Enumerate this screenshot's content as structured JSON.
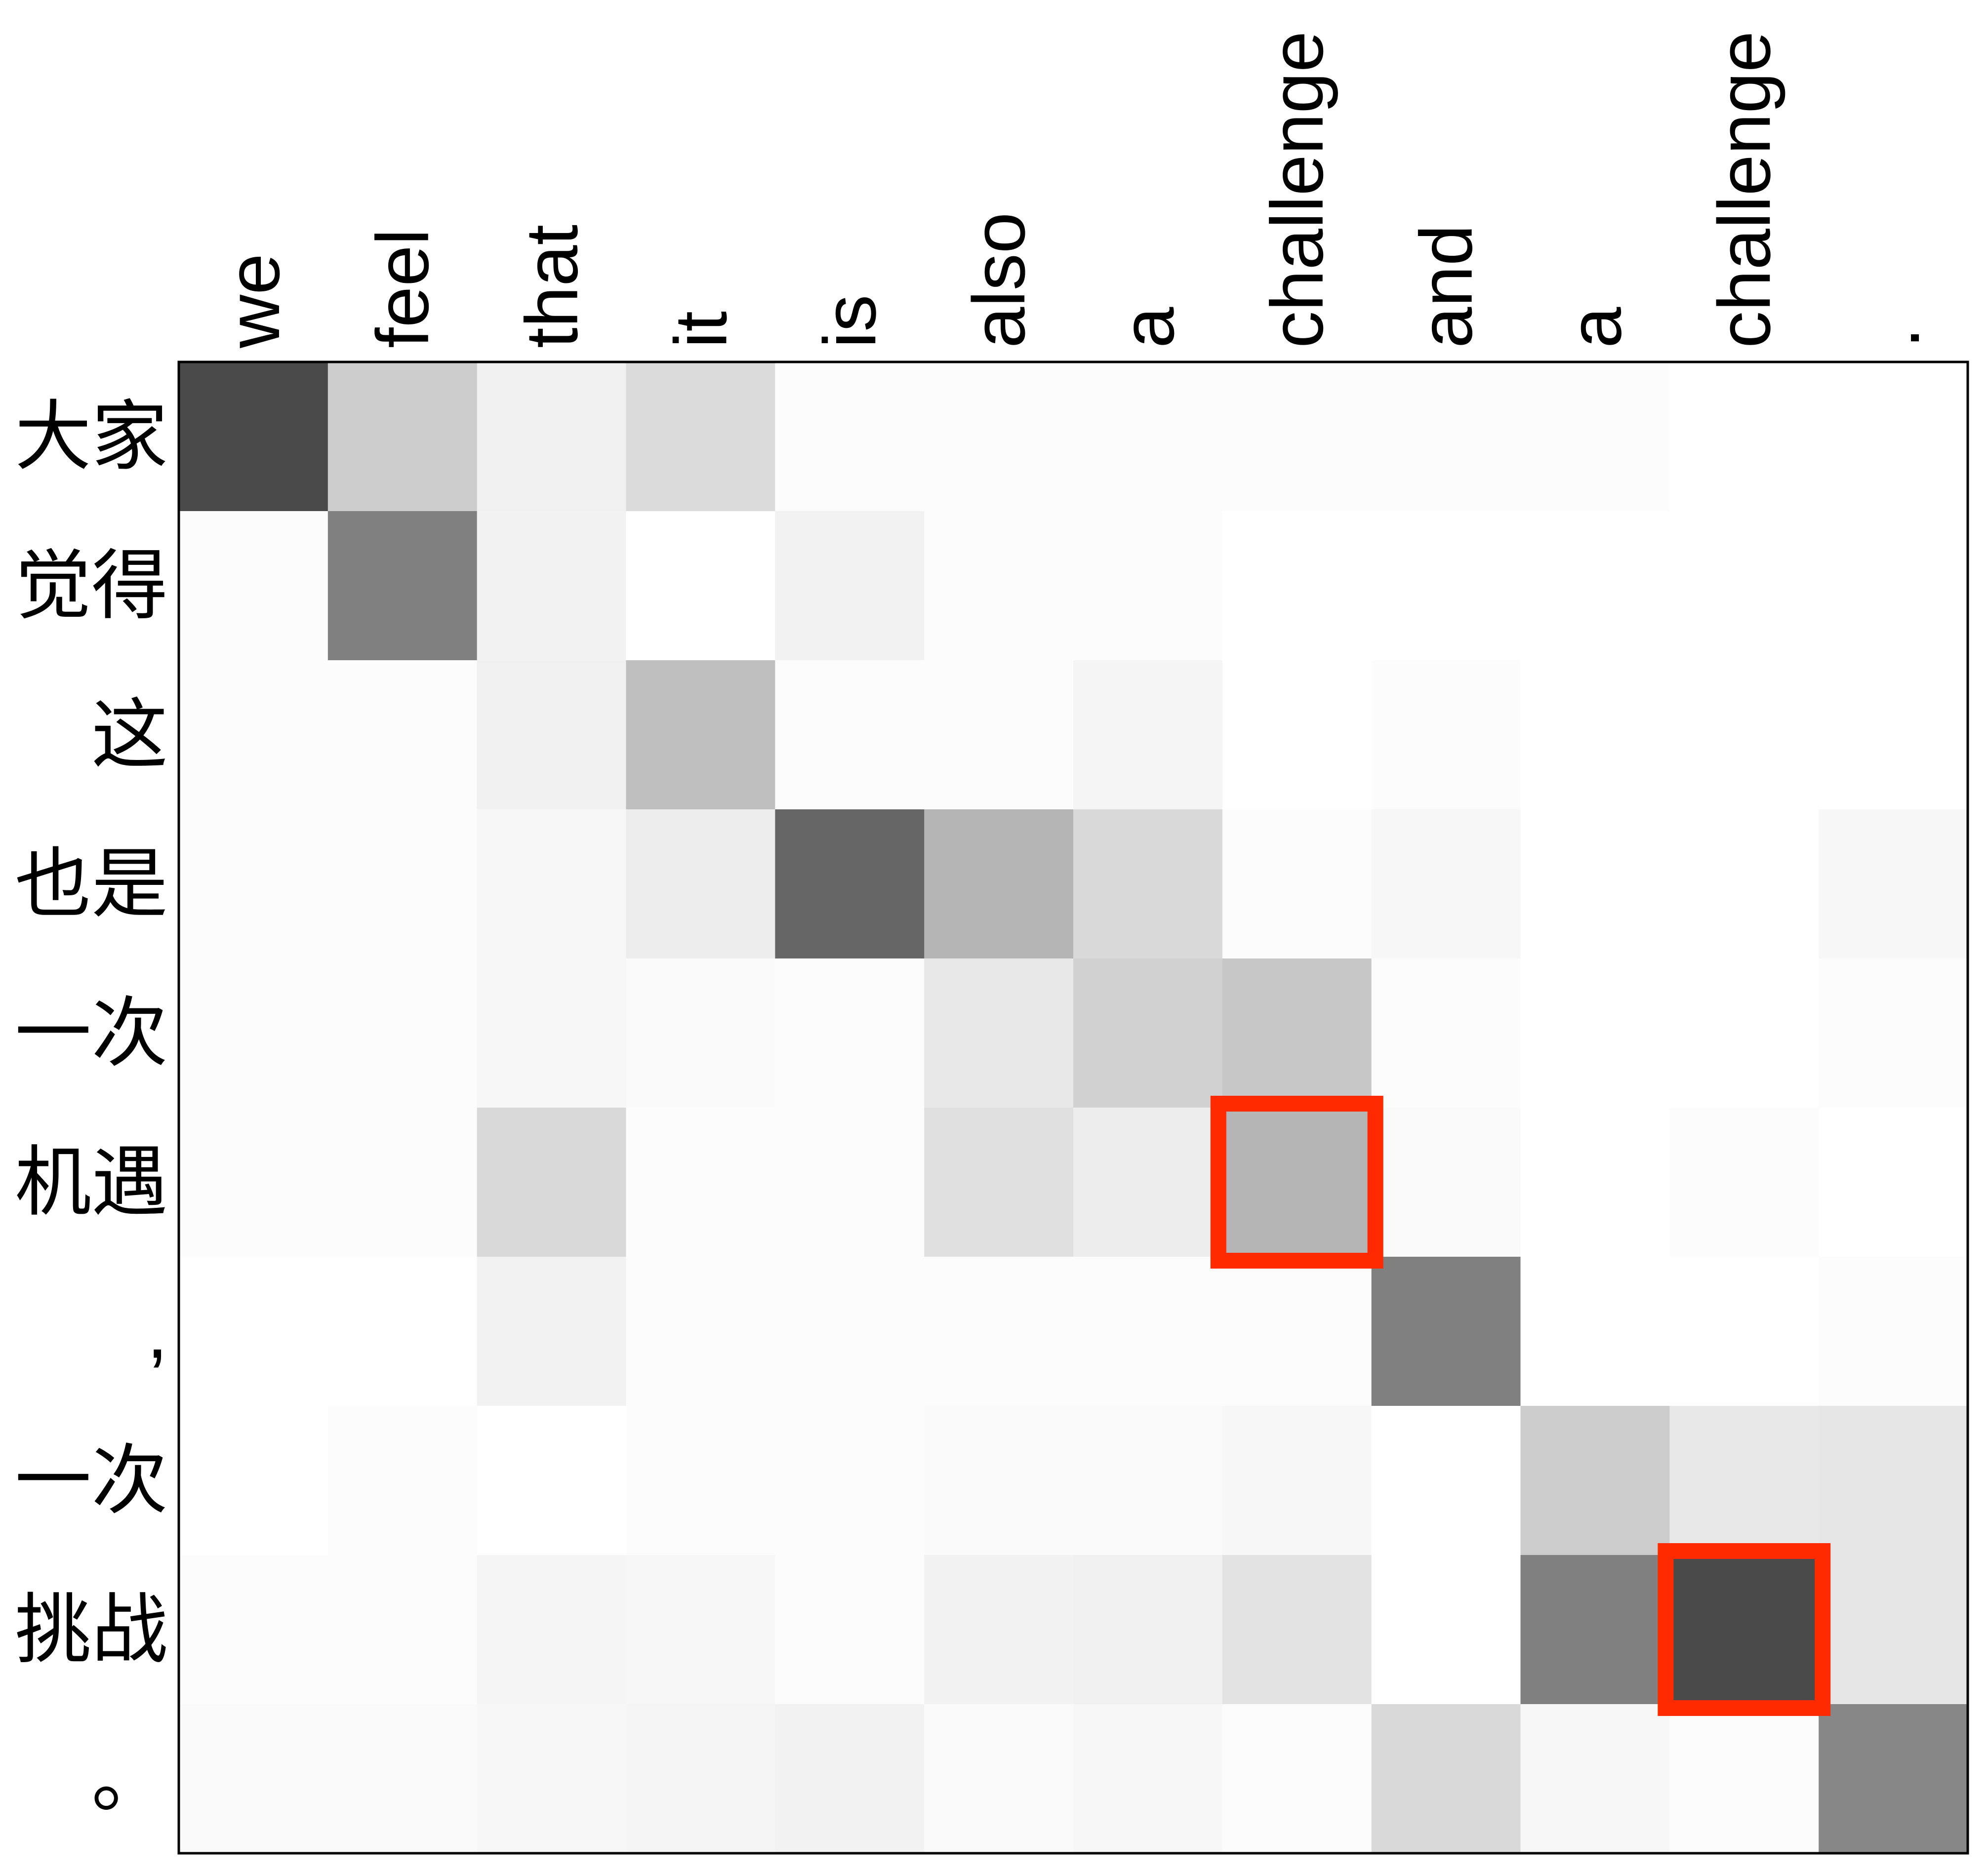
{
  "chart_data": {
    "type": "heatmap",
    "x_categories": [
      "we",
      "feel",
      "that",
      "it",
      "is",
      "also",
      "a",
      "challenge",
      "and",
      "a",
      "challenge",
      "."
    ],
    "y_categories": [
      "大家",
      "觉得",
      "这",
      "也是",
      "一次",
      "机遇",
      ",",
      "一次",
      "挑战",
      "。"
    ],
    "values": [
      [
        0.71,
        0.2,
        0.06,
        0.14,
        0.01,
        0.01,
        0.01,
        0.01,
        0.01,
        0.01,
        0.0,
        0.0
      ],
      [
        0.01,
        0.5,
        0.05,
        0.0,
        0.05,
        0.01,
        0.01,
        0.0,
        0.0,
        0.0,
        0.0,
        0.0
      ],
      [
        0.01,
        0.01,
        0.06,
        0.25,
        0.01,
        0.01,
        0.04,
        0.0,
        0.01,
        0.0,
        0.0,
        0.0
      ],
      [
        0.01,
        0.01,
        0.03,
        0.07,
        0.6,
        0.29,
        0.15,
        0.01,
        0.03,
        0.0,
        0.0,
        0.03
      ],
      [
        0.01,
        0.01,
        0.03,
        0.02,
        0.01,
        0.09,
        0.18,
        0.22,
        0.01,
        0.0,
        0.0,
        0.01
      ],
      [
        0.01,
        0.01,
        0.15,
        0.01,
        0.01,
        0.12,
        0.07,
        0.29,
        0.02,
        0.0,
        0.01,
        0.0
      ],
      [
        0.0,
        0.0,
        0.05,
        0.01,
        0.01,
        0.01,
        0.01,
        0.01,
        0.5,
        0.0,
        0.0,
        0.01
      ],
      [
        0.0,
        0.01,
        0.0,
        0.01,
        0.01,
        0.02,
        0.02,
        0.03,
        0.0,
        0.2,
        0.09,
        0.1
      ],
      [
        0.01,
        0.01,
        0.04,
        0.03,
        0.01,
        0.05,
        0.06,
        0.11,
        0.0,
        0.5,
        0.71,
        0.1
      ],
      [
        0.02,
        0.02,
        0.03,
        0.04,
        0.05,
        0.02,
        0.03,
        0.01,
        0.15,
        0.03,
        0.01,
        0.47
      ]
    ],
    "colormap": "gray_r",
    "highlights": [
      {
        "row": 5,
        "col": 7
      },
      {
        "row": 8,
        "col": 10
      }
    ],
    "highlight_color": "#ff2a00"
  }
}
